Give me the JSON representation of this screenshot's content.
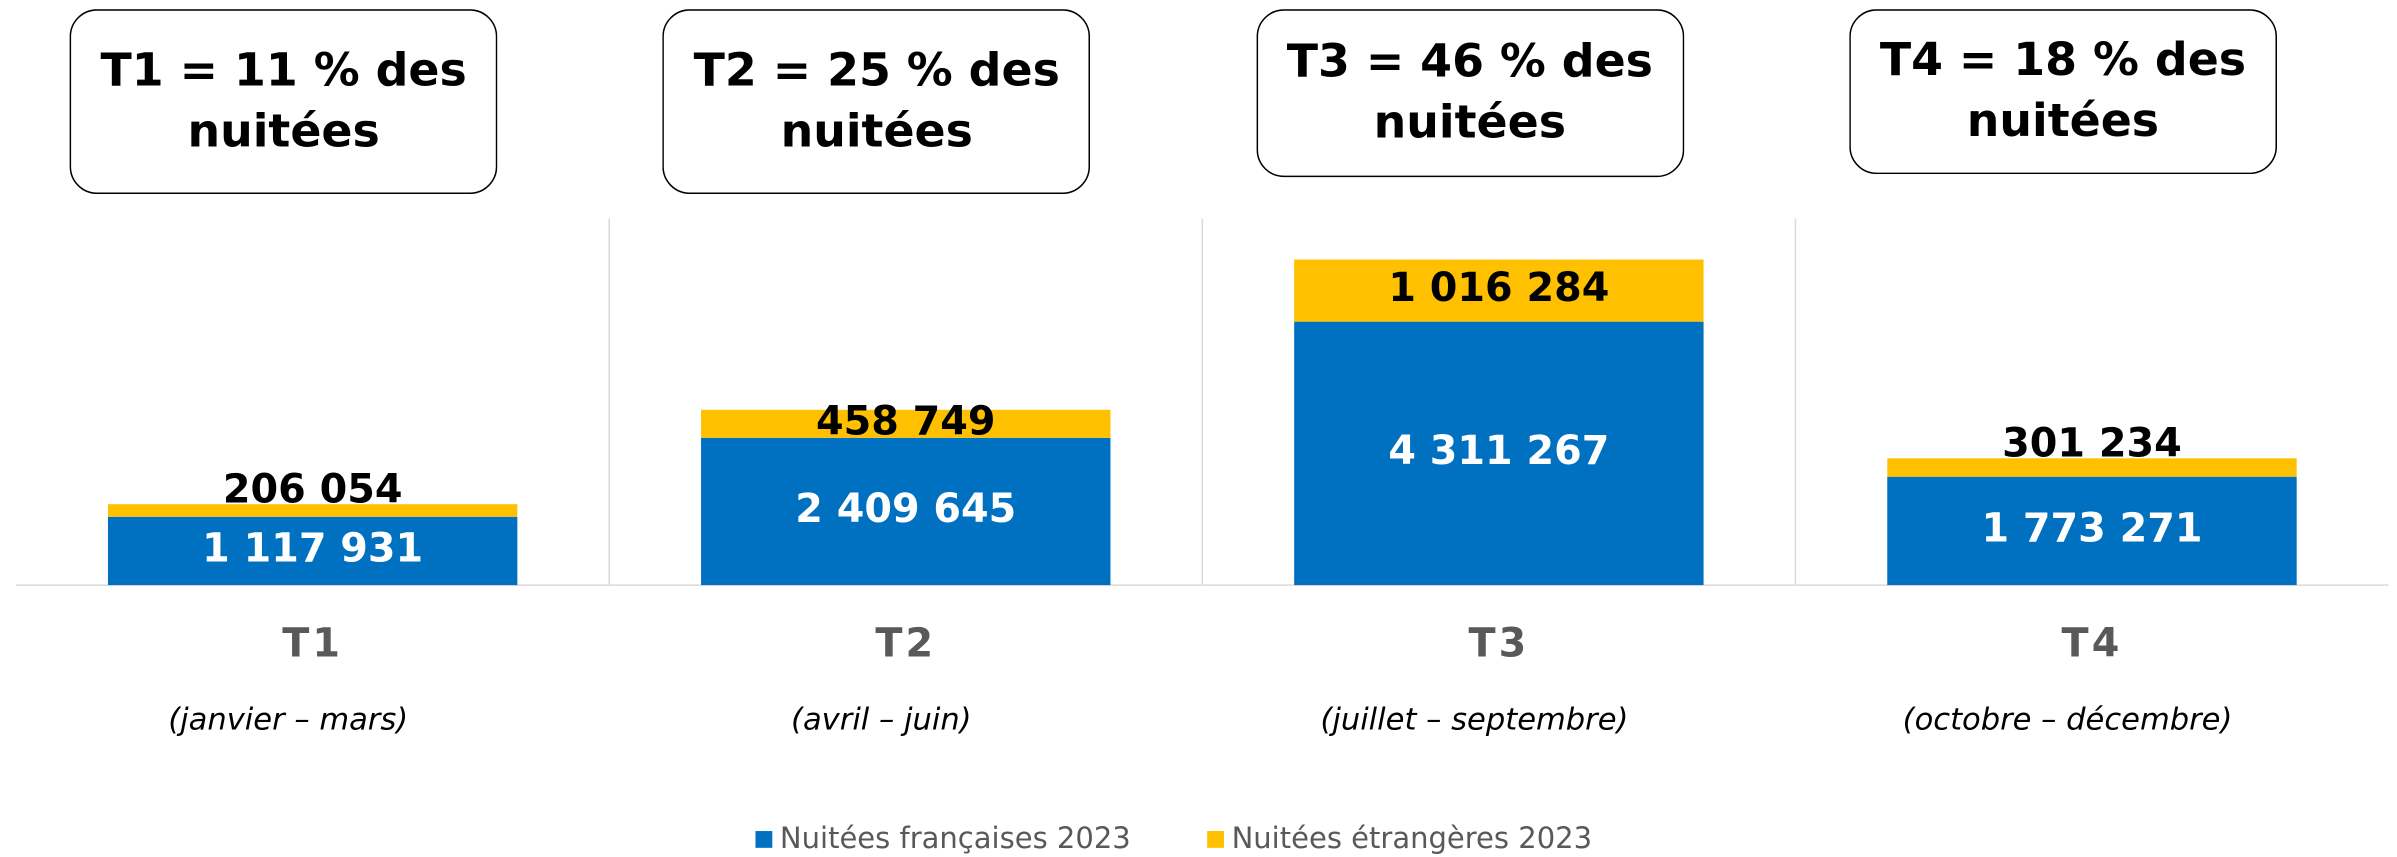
{
  "chart_data": {
    "type": "stacked_bar",
    "categories": [
      "T1",
      "T2",
      "T3",
      "T4"
    ],
    "category_subtitles": [
      "(janvier – mars)",
      "(avril – juin)",
      "(juillet – septembre)",
      "(octobre – décembre)"
    ],
    "annotations": [
      "T1 = 11 % des nuitées",
      "T2 = 25 % des nuitées",
      "T3 = 46 % des nuitées",
      "T4 = 18 % des nuitées"
    ],
    "series": [
      {
        "name": "Nuitées françaises 2023",
        "color": "#0070c0",
        "values": [
          1117931,
          2409645,
          4311267,
          1773271
        ],
        "value_labels": [
          "1 117 931",
          "2 409 645",
          "4 311 267",
          "1 773 271"
        ]
      },
      {
        "name": "Nuitées étrangères 2023",
        "color": "#ffc000",
        "values": [
          206054,
          458749,
          1016284,
          301234
        ],
        "value_labels": [
          "206 054",
          "458 749",
          "1 016 284",
          "301 234"
        ]
      }
    ],
    "ylim": [
      0,
      6000000
    ],
    "legend": "bottom"
  }
}
